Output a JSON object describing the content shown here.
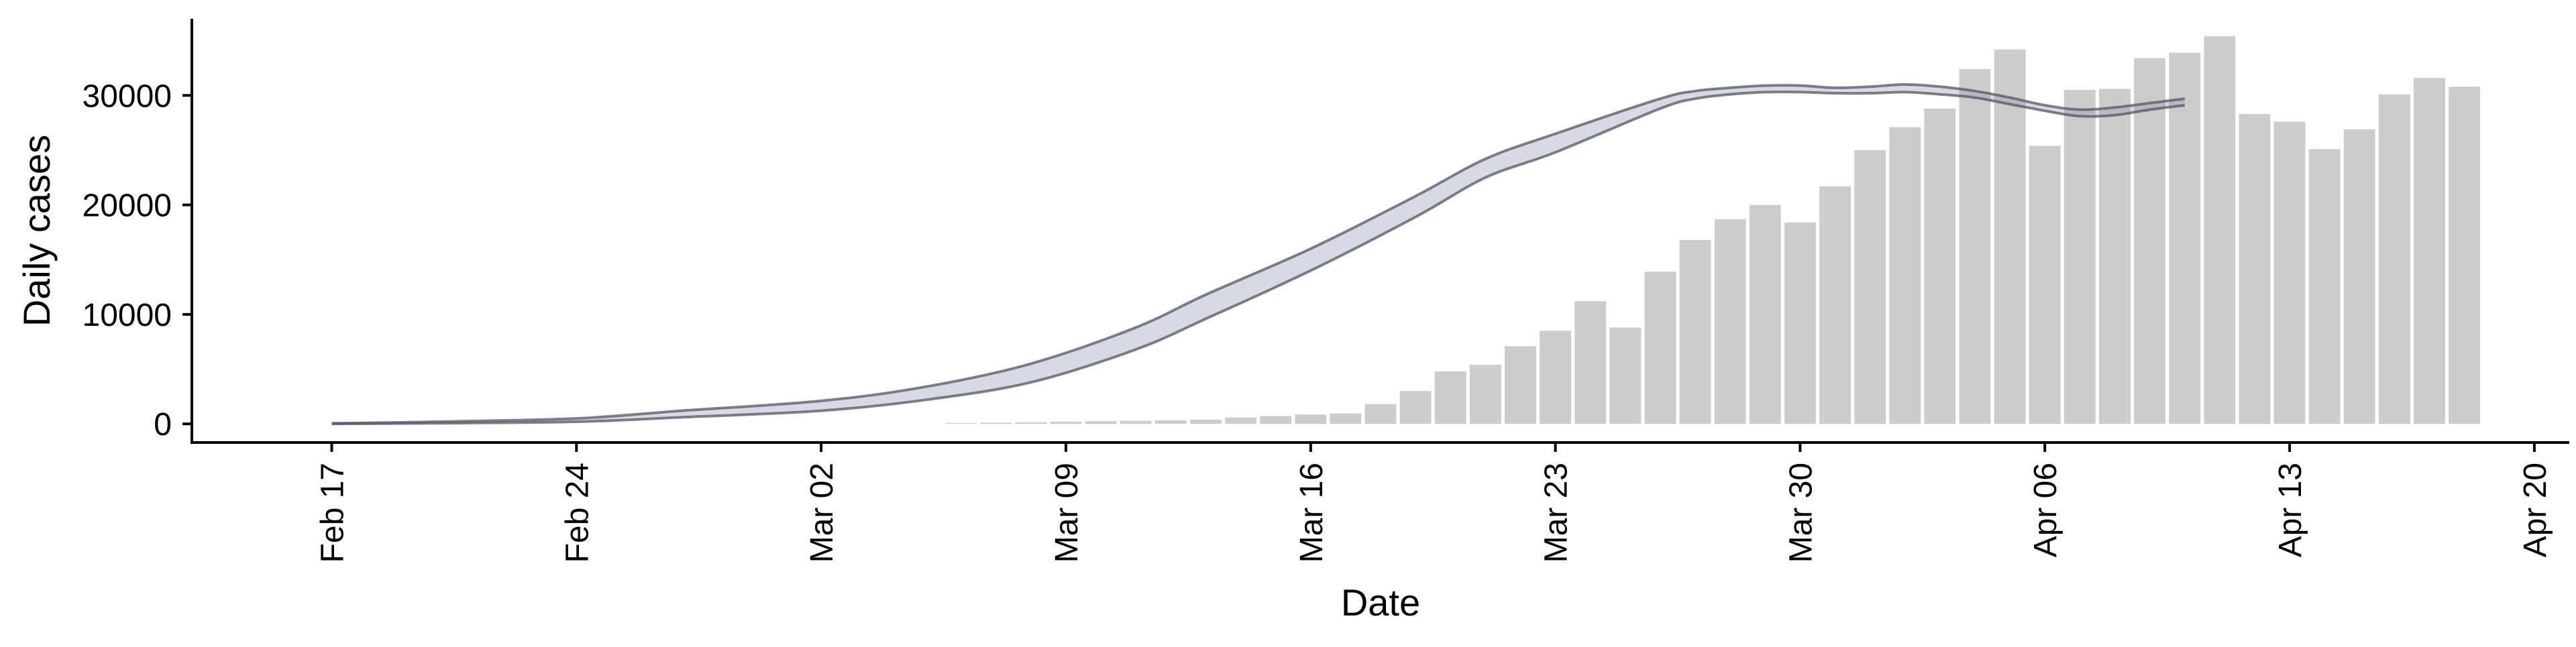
{
  "chart_data": {
    "type": "bar",
    "xlabel": "Date",
    "ylabel": "Daily cases",
    "x_tick_labels": [
      "Feb 17",
      "Feb 24",
      "Mar 02",
      "Mar 09",
      "Mar 16",
      "Mar 23",
      "Mar 30",
      "Apr 06",
      "Apr 13",
      "Apr 20"
    ],
    "x_tick_dates": [
      "2020-02-17",
      "2020-02-24",
      "2020-03-02",
      "2020-03-09",
      "2020-03-16",
      "2020-03-23",
      "2020-03-30",
      "2020-04-06",
      "2020-04-13",
      "2020-04-20"
    ],
    "y_tick_labels": [
      "0",
      "10000",
      "20000",
      "30000"
    ],
    "xlim": [
      "2020-02-13",
      "2020-04-21"
    ],
    "ylim": [
      -1700,
      37000
    ],
    "grid": false,
    "series": [
      {
        "kind": "bar",
        "color": "#cccccc",
        "x": [
          "2020-03-06",
          "2020-03-07",
          "2020-03-08",
          "2020-03-09",
          "2020-03-10",
          "2020-03-11",
          "2020-03-12",
          "2020-03-13",
          "2020-03-14",
          "2020-03-15",
          "2020-03-16",
          "2020-03-17",
          "2020-03-18",
          "2020-03-19",
          "2020-03-20",
          "2020-03-21",
          "2020-03-22",
          "2020-03-23",
          "2020-03-24",
          "2020-03-25",
          "2020-03-26",
          "2020-03-27",
          "2020-03-28",
          "2020-03-29",
          "2020-03-30",
          "2020-03-31",
          "2020-04-01",
          "2020-04-02",
          "2020-04-03",
          "2020-04-04",
          "2020-04-05",
          "2020-04-06",
          "2020-04-07",
          "2020-04-08",
          "2020-04-09",
          "2020-04-10",
          "2020-04-11",
          "2020-04-12",
          "2020-04-13",
          "2020-04-14",
          "2020-04-15",
          "2020-04-16",
          "2020-04-17",
          "2020-04-18"
        ],
        "values": [
          80,
          120,
          150,
          200,
          250,
          280,
          320,
          380,
          580,
          720,
          850,
          950,
          1800,
          3000,
          4800,
          5400,
          7100,
          8500,
          11200,
          8800,
          13900,
          16800,
          18700,
          20000,
          18400,
          21700,
          25000,
          27100,
          28800,
          32400,
          34200,
          25400,
          30500,
          30600,
          33400,
          33900,
          35400,
          28300,
          27600,
          25100,
          26900,
          30100,
          31600,
          30800
        ]
      },
      {
        "kind": "band",
        "color": "#8c96b4",
        "x": [
          "2020-02-17",
          "2020-02-20",
          "2020-02-24",
          "2020-02-27",
          "2020-03-02",
          "2020-03-05",
          "2020-03-08",
          "2020-03-11",
          "2020-03-13",
          "2020-03-16",
          "2020-03-19",
          "2020-03-21",
          "2020-03-23",
          "2020-03-26",
          "2020-03-27",
          "2020-03-28",
          "2020-03-29",
          "2020-03-30",
          "2020-03-31",
          "2020-04-01",
          "2020-04-02",
          "2020-04-03",
          "2020-04-04",
          "2020-04-05",
          "2020-04-06",
          "2020-04-07",
          "2020-04-08",
          "2020-04-09",
          "2020-04-10"
        ],
        "upper": [
          50,
          200,
          500,
          1200,
          2100,
          3400,
          5500,
          8800,
          11800,
          16000,
          20800,
          24200,
          26500,
          29700,
          30400,
          30700,
          30900,
          30900,
          30700,
          30800,
          31000,
          30800,
          30400,
          29800,
          29100,
          28700,
          28900,
          29300,
          29700
        ],
        "lower": [
          0,
          60,
          200,
          600,
          1200,
          2200,
          3800,
          6800,
          9600,
          14000,
          18900,
          22500,
          24800,
          28800,
          29700,
          30100,
          30300,
          30300,
          30200,
          30200,
          30300,
          30100,
          29800,
          29200,
          28600,
          28100,
          28200,
          28700,
          29100
        ]
      }
    ]
  }
}
